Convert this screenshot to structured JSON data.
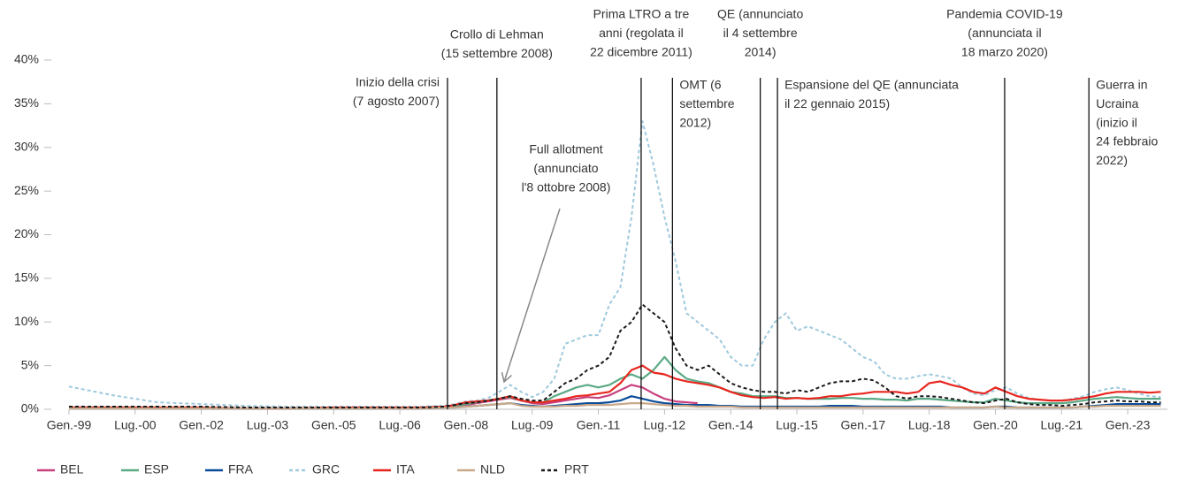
{
  "chart_data": {
    "type": "line",
    "x": [
      1999,
      2000,
      2001,
      2002,
      2003,
      2004,
      2005,
      2006,
      2007,
      2007.5,
      2007.75,
      2008,
      2008.25,
      2008.5,
      2008.75,
      2009,
      2009.25,
      2009.5,
      2009.75,
      2010,
      2010.25,
      2010.5,
      2010.75,
      2011,
      2011.25,
      2011.5,
      2011.75,
      2012,
      2012.25,
      2012.5,
      2012.75,
      2013,
      2013.25,
      2013.5,
      2013.75,
      2014,
      2014.25,
      2014.5,
      2014.75,
      2015,
      2015.25,
      2015.5,
      2015.75,
      2016,
      2016.25,
      2016.5,
      2016.75,
      2017,
      2017.25,
      2017.5,
      2017.75,
      2018,
      2018.25,
      2018.5,
      2018.75,
      2019,
      2019.25,
      2019.5,
      2019.75,
      2020,
      2020.25,
      2020.5,
      2020.75,
      2021,
      2021.25,
      2021.5,
      2021.75,
      2022,
      2022.25,
      2022.5,
      2022.75,
      2023,
      2023.25,
      2023.5,
      2023.75
    ],
    "series": [
      {
        "name": "BEL",
        "color": "#c8407e",
        "values": [
          0.2,
          0.2,
          0.2,
          0.1,
          0.1,
          0.1,
          0.1,
          0.1,
          0.1,
          0.2,
          0.3,
          0.5,
          0.7,
          0.9,
          1.1,
          1.3,
          1.0,
          0.7,
          0.6,
          0.8,
          1.0,
          1.2,
          1.4,
          1.3,
          1.6,
          2.2,
          2.8,
          2.5,
          1.8,
          1.2,
          0.9,
          0.8,
          0.7,
          null,
          null,
          null,
          null,
          null,
          null,
          null,
          null,
          null,
          null,
          null,
          null,
          null,
          null,
          null,
          null,
          null,
          null,
          null,
          null,
          null,
          null,
          null,
          null,
          null,
          null,
          null,
          null,
          null,
          null,
          null,
          null,
          null,
          null,
          null,
          null,
          null,
          null,
          null,
          null,
          null,
          null
        ]
      },
      {
        "name": "ESP",
        "color": "#5aa985",
        "values": [
          0.2,
          0.2,
          0.2,
          0.2,
          0.1,
          0.1,
          0.1,
          0.1,
          0.2,
          0.3,
          0.4,
          0.6,
          0.8,
          1.0,
          1.2,
          1.4,
          1.0,
          0.8,
          0.8,
          1.5,
          2.0,
          2.5,
          2.8,
          2.5,
          2.8,
          3.5,
          4.0,
          3.5,
          4.5,
          6.0,
          4.5,
          3.5,
          3.2,
          3.0,
          2.5,
          2.0,
          1.8,
          1.5,
          1.5,
          1.5,
          1.3,
          1.3,
          1.2,
          1.2,
          1.2,
          1.3,
          1.3,
          1.2,
          1.2,
          1.1,
          1.1,
          1.0,
          1.2,
          1.2,
          1.1,
          1.0,
          0.9,
          0.8,
          0.8,
          1.2,
          1.0,
          0.8,
          0.7,
          0.7,
          0.7,
          0.7,
          0.8,
          1.0,
          1.2,
          1.3,
          1.4,
          1.3,
          1.2,
          1.2,
          1.2
        ]
      },
      {
        "name": "FRA",
        "color": "#0a4c9a",
        "values": [
          0.1,
          0.1,
          0.1,
          0.1,
          0.1,
          0.1,
          0.1,
          0.1,
          0.1,
          0.2,
          0.2,
          0.3,
          0.4,
          0.5,
          0.6,
          0.7,
          0.5,
          0.4,
          0.3,
          0.4,
          0.5,
          0.6,
          0.7,
          0.7,
          0.8,
          1.0,
          1.5,
          1.2,
          0.9,
          0.7,
          0.6,
          0.5,
          0.5,
          0.5,
          0.4,
          0.4,
          0.3,
          0.3,
          0.3,
          0.3,
          0.3,
          0.3,
          0.3,
          0.3,
          0.4,
          0.4,
          0.4,
          0.3,
          0.3,
          0.3,
          0.3,
          0.3,
          0.3,
          0.3,
          0.3,
          0.2,
          0.2,
          0.2,
          0.2,
          0.3,
          0.3,
          0.2,
          0.2,
          0.2,
          0.2,
          0.2,
          0.2,
          0.3,
          0.4,
          0.5,
          0.6,
          0.6,
          0.6,
          0.6,
          0.6
        ]
      },
      {
        "name": "GRC",
        "color": "#9fc9dd",
        "dashed": true,
        "values": [
          2.6,
          1.6,
          0.8,
          0.6,
          0.4,
          0.3,
          0.3,
          0.3,
          0.3,
          0.4,
          0.6,
          0.9,
          1.0,
          1.3,
          2.0,
          2.8,
          2.0,
          1.4,
          2.0,
          3.5,
          7.5,
          8.0,
          8.5,
          8.5,
          12,
          14,
          22,
          33,
          28,
          22,
          17,
          11,
          10,
          9,
          8,
          6,
          5,
          5,
          8,
          10,
          11,
          9,
          9.5,
          9,
          8.5,
          8,
          7,
          6,
          5.5,
          4,
          3.5,
          3.5,
          3.8,
          4.0,
          3.8,
          3.5,
          2.5,
          1.8,
          1.6,
          2.2,
          2.5,
          1.8,
          1.3,
          1.1,
          1.0,
          1.0,
          1.2,
          1.5,
          2.0,
          2.3,
          2.5,
          2.2,
          1.8,
          1.5,
          1.4
        ]
      },
      {
        "name": "ITA",
        "color": "#e8261f",
        "values": [
          0.2,
          0.2,
          0.2,
          0.2,
          0.1,
          0.1,
          0.2,
          0.2,
          0.2,
          0.3,
          0.5,
          0.8,
          0.9,
          1.0,
          1.2,
          1.5,
          1.0,
          0.8,
          0.8,
          1.0,
          1.2,
          1.5,
          1.6,
          1.8,
          2.0,
          3.0,
          4.5,
          5.0,
          4.2,
          4.0,
          3.5,
          3.2,
          3.0,
          2.8,
          2.5,
          2.0,
          1.6,
          1.4,
          1.3,
          1.4,
          1.2,
          1.3,
          1.2,
          1.3,
          1.5,
          1.5,
          1.7,
          1.8,
          2.0,
          2.0,
          2.0,
          1.8,
          2.0,
          3.0,
          3.2,
          2.8,
          2.5,
          2.0,
          1.8,
          2.5,
          2.0,
          1.5,
          1.2,
          1.1,
          1.0,
          1.0,
          1.1,
          1.3,
          1.5,
          1.8,
          2.0,
          2.0,
          2.0,
          1.9,
          2.0
        ]
      },
      {
        "name": "NLD",
        "color": "#c9a98a",
        "values": [
          0.1,
          0.1,
          0.1,
          0.1,
          0.1,
          0.1,
          0.1,
          0.1,
          0.1,
          0.2,
          0.2,
          0.3,
          0.4,
          0.5,
          0.6,
          0.7,
          0.4,
          0.3,
          0.3,
          0.3,
          0.4,
          0.4,
          0.5,
          0.5,
          0.5,
          0.6,
          0.7,
          0.7,
          0.6,
          0.5,
          0.4,
          0.4,
          0.3,
          0.3,
          0.3,
          0.3,
          0.2,
          0.2,
          0.2,
          0.2,
          0.2,
          0.2,
          0.2,
          0.2,
          0.2,
          0.2,
          0.2,
          0.2,
          0.2,
          0.2,
          0.2,
          0.2,
          0.2,
          0.2,
          0.2,
          0.2,
          0.2,
          0.2,
          0.2,
          0.3,
          0.2,
          0.2,
          0.2,
          0.2,
          0.2,
          0.2,
          0.2,
          0.3,
          0.3,
          0.4,
          0.4,
          0.4,
          0.4,
          0.4,
          0.4
        ]
      },
      {
        "name": "PRT",
        "color": "#1a1a1a",
        "dashed": true,
        "values": [
          0.3,
          0.3,
          0.3,
          0.3,
          0.2,
          0.2,
          0.2,
          0.2,
          0.2,
          0.3,
          0.5,
          0.7,
          0.8,
          1.0,
          1.2,
          1.5,
          1.2,
          1.0,
          1.0,
          2.0,
          3.0,
          3.5,
          4.5,
          5,
          6,
          9,
          10,
          12,
          11,
          10,
          7,
          5,
          4.5,
          5,
          4,
          3,
          2.5,
          2.2,
          2.0,
          2.0,
          1.8,
          2.2,
          2.0,
          2.5,
          3.0,
          3.2,
          3.2,
          3.5,
          3.3,
          2.5,
          1.5,
          1.2,
          1.5,
          1.5,
          1.4,
          1.2,
          1.0,
          0.8,
          0.7,
          1.0,
          1.2,
          0.8,
          0.6,
          0.5,
          0.5,
          0.4,
          0.5,
          0.6,
          0.8,
          0.9,
          1.0,
          0.9,
          0.9,
          0.8,
          0.8
        ]
      }
    ],
    "xlim": [
      1999,
      2023.9
    ],
    "xticks": [
      {
        "value": 1999,
        "label": "Gen.-99"
      },
      {
        "value": 2000.5,
        "label": "Lug.-00"
      },
      {
        "value": 2002,
        "label": "Gen.-02"
      },
      {
        "value": 2003.5,
        "label": "Lug.-03"
      },
      {
        "value": 2005,
        "label": "Gen.-05"
      },
      {
        "value": 2006.5,
        "label": "Lug.-06"
      },
      {
        "value": 2008,
        "label": "Gen.-08"
      },
      {
        "value": 2009.5,
        "label": "Lug.-09"
      },
      {
        "value": 2011,
        "label": "Gen.-11"
      },
      {
        "value": 2012.5,
        "label": "Lug.-12"
      },
      {
        "value": 2014,
        "label": "Gen.-14"
      },
      {
        "value": 2015.5,
        "label": "Lug.-15"
      },
      {
        "value": 2017,
        "label": "Gen.-17"
      },
      {
        "value": 2018.5,
        "label": "Lug.-18"
      },
      {
        "value": 2020,
        "label": "Gen.-20"
      },
      {
        "value": 2021.5,
        "label": "Lug.-21"
      },
      {
        "value": 2023,
        "label": "Gen.-23"
      }
    ],
    "ylim": [
      0,
      40
    ],
    "yticks": [
      {
        "value": 0,
        "label": "0%"
      },
      {
        "value": 5,
        "label": "5%"
      },
      {
        "value": 10,
        "label": "10%"
      },
      {
        "value": 15,
        "label": "15%"
      },
      {
        "value": 20,
        "label": "20%"
      },
      {
        "value": 25,
        "label": "25%"
      },
      {
        "value": 30,
        "label": "30%"
      },
      {
        "value": 35,
        "label": "35%"
      },
      {
        "value": 40,
        "label": "40%"
      }
    ],
    "events": [
      {
        "x": 2007.58,
        "label": [
          "Inizio della crisi",
          "(7 agosto 2007)"
        ]
      },
      {
        "x": 2008.7,
        "label": [
          "Crollo di Lehman",
          "(15 settembre 2008)"
        ]
      },
      {
        "x": 2011.97,
        "label": [
          "Prima LTRO a tre",
          "anni (regolata il",
          "22 dicembre 2011)"
        ]
      },
      {
        "x": 2012.68,
        "label": [
          "OMT (6",
          "settembre",
          "2012)"
        ]
      },
      {
        "x": 2014.67,
        "label": [
          "QE (annunciato",
          "il 4 settembre",
          "2014)"
        ]
      },
      {
        "x": 2015.06,
        "label": [
          "Espansione del QE (annunciata",
          "il 22 gennaio 2015)"
        ]
      },
      {
        "x": 2020.21,
        "label": [
          "Pandemia COVID-19",
          "(annunciata il",
          "18 marzo 2020)"
        ]
      },
      {
        "x": 2022.12,
        "label": [
          "Guerra in",
          "Ucraina",
          "(inizio il",
          "24 febbraio",
          "2022)"
        ]
      }
    ],
    "callout": [
      "Full allotment",
      "(annunciato",
      "l'8 ottobre 2008)"
    ]
  }
}
